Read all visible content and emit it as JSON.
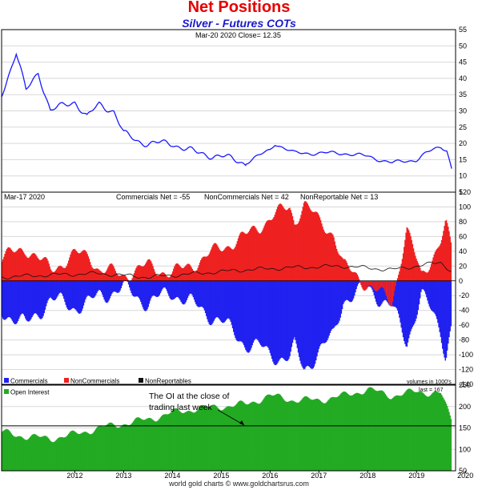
{
  "title": "Net Positions",
  "subtitle": "Silver - Futures COTs",
  "footer": "world gold charts © www.goldchartsrus.com",
  "colors": {
    "price": "#1a1aff",
    "commercials": "#2020f0",
    "noncommercials": "#ee2020",
    "nonreportables": "#111111",
    "open_interest": "#22aa22",
    "grid": "#d8d8d8"
  },
  "chart_data": [
    {
      "type": "line",
      "panel": "price",
      "header": "Mar-20  2020   Close= 12.35",
      "ylim": [
        5,
        55
      ],
      "yticks": [
        "5",
        "10",
        "15",
        "20",
        "25",
        "30",
        "35",
        "40",
        "45",
        "50",
        "55"
      ],
      "x": [
        "2011.0",
        "2011.3",
        "2011.5",
        "2011.75",
        "2012.0",
        "2012.5",
        "2012.75",
        "2013.0",
        "2013.3",
        "2013.5",
        "2013.75",
        "2014.0",
        "2014.5",
        "2015.0",
        "2015.5",
        "2016.0",
        "2016.5",
        "2016.6",
        "2017.0",
        "2017.5",
        "2018.0",
        "2018.5",
        "2019.0",
        "2019.5",
        "2019.7",
        "2020.0",
        "2020.12",
        "2020.22"
      ],
      "values": [
        35,
        48,
        36,
        42,
        30,
        33,
        28,
        32,
        30,
        23,
        21,
        20,
        20,
        17,
        16,
        14,
        18,
        20,
        17,
        17,
        17,
        16,
        14,
        15,
        17,
        19,
        18,
        12.35
      ],
      "grid": true
    },
    {
      "type": "bar",
      "panel": "cot",
      "date_label": "Mar-17  2020",
      "headers": [
        "Commercials Net = -55",
        "NonCommercials Net = 42",
        "NonReportable Net = 13"
      ],
      "ylim": [
        -140,
        120
      ],
      "yticks": [
        "120",
        "100",
        "80",
        "60",
        "40",
        "20",
        "0",
        "-20",
        "-40",
        "-60",
        "-80",
        "-100",
        "-120",
        "-140"
      ],
      "legend_position": "bottom-left",
      "series": [
        {
          "name": "Commercials",
          "x": [
            "2011.0",
            "2011.5",
            "2012.0",
            "2012.5",
            "2012.8",
            "2013.0",
            "2013.5",
            "2014.0",
            "2014.5",
            "2015.0",
            "2015.5",
            "2016.0",
            "2016.3",
            "2016.5",
            "2016.9",
            "2017.0",
            "2017.2",
            "2017.5",
            "2017.8",
            "2018.0",
            "2018.5",
            "2019.0",
            "2019.3",
            "2019.6",
            "2020.0",
            "2020.1",
            "2020.22"
          ],
          "values": [
            -40,
            -60,
            -25,
            -35,
            -30,
            -20,
            -10,
            -30,
            -15,
            -35,
            -55,
            -85,
            -90,
            -100,
            -105,
            -90,
            -120,
            -95,
            -75,
            -25,
            -10,
            -35,
            -85,
            -15,
            -70,
            -100,
            -55
          ]
        },
        {
          "name": "NonCommercials",
          "x": [
            "2011.0",
            "2011.5",
            "2012.0",
            "2012.5",
            "2012.8",
            "2013.0",
            "2013.5",
            "2014.0",
            "2014.5",
            "2015.0",
            "2015.5",
            "2016.0",
            "2016.3",
            "2016.5",
            "2016.9",
            "2017.0",
            "2017.2",
            "2017.5",
            "2017.8",
            "2018.0",
            "2018.5",
            "2019.0",
            "2019.3",
            "2019.6",
            "2020.0",
            "2020.1",
            "2020.22"
          ],
          "values": [
            30,
            45,
            15,
            35,
            35,
            15,
            8,
            20,
            10,
            25,
            45,
            60,
            75,
            85,
            100,
            80,
            105,
            80,
            65,
            20,
            -5,
            -30,
            70,
            5,
            55,
            75,
            42
          ]
        },
        {
          "name": "NonReportables",
          "x": [
            "2011.0",
            "2012.0",
            "2013.0",
            "2014.0",
            "2015.0",
            "2016.0",
            "2017.0",
            "2018.0",
            "2019.0",
            "2020.0",
            "2020.22"
          ],
          "values": [
            5,
            8,
            10,
            5,
            10,
            15,
            18,
            20,
            15,
            25,
            13
          ]
        }
      ],
      "grid": true
    },
    {
      "type": "bar",
      "panel": "open_interest",
      "legend": "Open Interest",
      "units_note": "volumes in 1000's",
      "last_label": "last = 167",
      "annotation": "The OI at the close of trading last week",
      "reference_line": 155,
      "ylim": [
        50,
        250
      ],
      "yticks": [
        "50",
        "100",
        "150",
        "200",
        "250"
      ],
      "xticks": [
        "2012",
        "2013",
        "2014",
        "2015",
        "2016",
        "2017",
        "2018",
        "2019",
        "2020"
      ],
      "x": [
        "2011.0",
        "2011.5",
        "2012.0",
        "2012.5",
        "2013.0",
        "2013.5",
        "2014.0",
        "2014.5",
        "2015.0",
        "2015.5",
        "2016.0",
        "2016.5",
        "2017.0",
        "2017.5",
        "2018.0",
        "2018.5",
        "2019.0",
        "2019.5",
        "2020.0",
        "2020.22"
      ],
      "values": [
        140,
        130,
        125,
        135,
        150,
        160,
        170,
        185,
        195,
        200,
        205,
        225,
        215,
        215,
        225,
        240,
        225,
        235,
        230,
        167
      ],
      "grid": true
    }
  ]
}
